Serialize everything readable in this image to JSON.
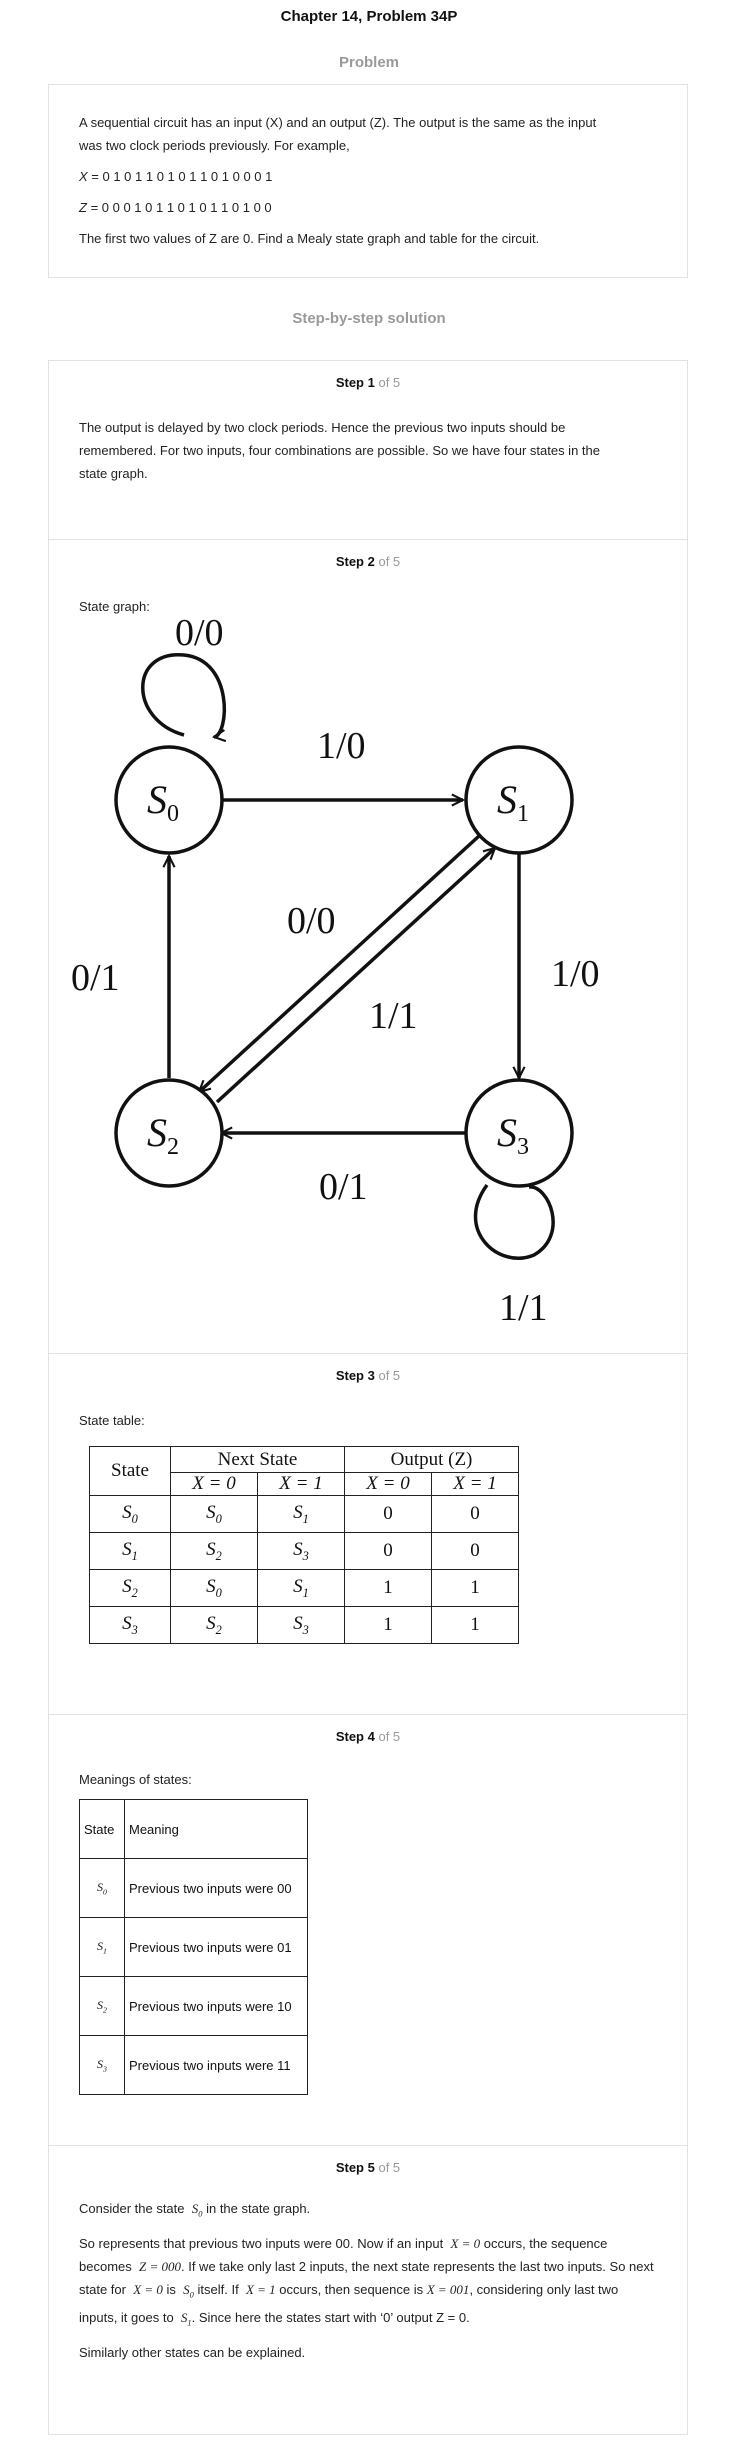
{
  "page_title": "Chapter 14, Problem 34P",
  "problem": {
    "heading": "Problem",
    "line1": "A sequential circuit has an input (X) and an output (Z). The output is the same as the input",
    "line2": "was two clock periods previously. For example,",
    "x_label": "X",
    "x_sequence": "= 0 1 0 1 1 0 1 0 1 1 0 1 0 0 0 1",
    "z_label": "Z",
    "z_sequence": "= 0 0 0 1 0 1 1 0 1 0 1 1 0 1 0 0",
    "last_line": "The first two values of Z are 0. Find a Mealy state graph and table for the circuit."
  },
  "solution_heading": "Step-by-step solution",
  "steps": [
    {
      "label": "Step 1",
      "of": "of 5",
      "lines": [
        "The output is delayed by two clock periods. Hence the previous two inputs should be",
        "remembered. For two inputs, four combinations are possible. So we have four states in the",
        "state graph."
      ]
    },
    {
      "label": "Step 2",
      "of": "of 5",
      "intro": "State graph:"
    },
    {
      "label": "Step 3",
      "of": "of 5",
      "intro": "State table:"
    },
    {
      "label": "Step 4",
      "of": "of 5",
      "intro": "Meanings of states:"
    },
    {
      "label": "Step 5",
      "of": "of 5",
      "para1_pre": "Consider the state",
      "para1_post": "in the state graph.",
      "para2_a": "So represents that previous two inputs were 00. Now if an input",
      "para2_b": "occurs, the",
      "para2_c": "sequence becomes",
      "para2_d": ". If we take only last 2 inputs, the next state represents the last",
      "para2_e": "two inputs. So next state for",
      "para2_f": "is",
      "para2_g": "itself. If",
      "para2_h": "occurs, then sequence is",
      "para2_i": ", considering only last two inputs, it goes to",
      "para2_j": ". Since here the states start with ‘0’",
      "para2_k": "output Z = 0.",
      "math_x0": "X = 0",
      "math_x1": "X = 1",
      "math_z000": "Z = 000",
      "math_x001": "X = 001",
      "para3": "Similarly other states can be explained."
    }
  ],
  "state_graph": {
    "states": [
      "S0",
      "S1",
      "S2",
      "S3"
    ],
    "transitions": [
      {
        "from": "S0",
        "to": "S0",
        "label": "0/0"
      },
      {
        "from": "S0",
        "to": "S1",
        "label": "1/0"
      },
      {
        "from": "S1",
        "to": "S2",
        "label": "0/0"
      },
      {
        "from": "S1",
        "to": "S3",
        "label": "1/0"
      },
      {
        "from": "S2",
        "to": "S0",
        "label": "0/1"
      },
      {
        "from": "S2",
        "to": "S1",
        "label": "1/1"
      },
      {
        "from": "S3",
        "to": "S2",
        "label": "0/1"
      },
      {
        "from": "S3",
        "to": "S3",
        "label": "1/1"
      }
    ]
  },
  "state_table": {
    "col_state": "State",
    "col_next": "Next State",
    "col_output": "Output (Z)",
    "sub_x0": "X = 0",
    "sub_x1": "X = 1",
    "rows": [
      {
        "state": "S0",
        "next0": "S0",
        "next1": "S1",
        "out0": "0",
        "out1": "0"
      },
      {
        "state": "S1",
        "next0": "S2",
        "next1": "S3",
        "out0": "0",
        "out1": "0"
      },
      {
        "state": "S2",
        "next0": "S0",
        "next1": "S1",
        "out0": "1",
        "out1": "1"
      },
      {
        "state": "S3",
        "next0": "S2",
        "next1": "S3",
        "out0": "1",
        "out1": "1"
      }
    ]
  },
  "meanings_table": {
    "col_state": "State",
    "col_meaning": "Meaning",
    "rows": [
      {
        "state": "S0",
        "meaning": "Previous two inputs were 00"
      },
      {
        "state": "S1",
        "meaning": "Previous two inputs were 01"
      },
      {
        "state": "S2",
        "meaning": "Previous two inputs were 10"
      },
      {
        "state": "S3",
        "meaning": "Previous two inputs were 11"
      }
    ]
  }
}
